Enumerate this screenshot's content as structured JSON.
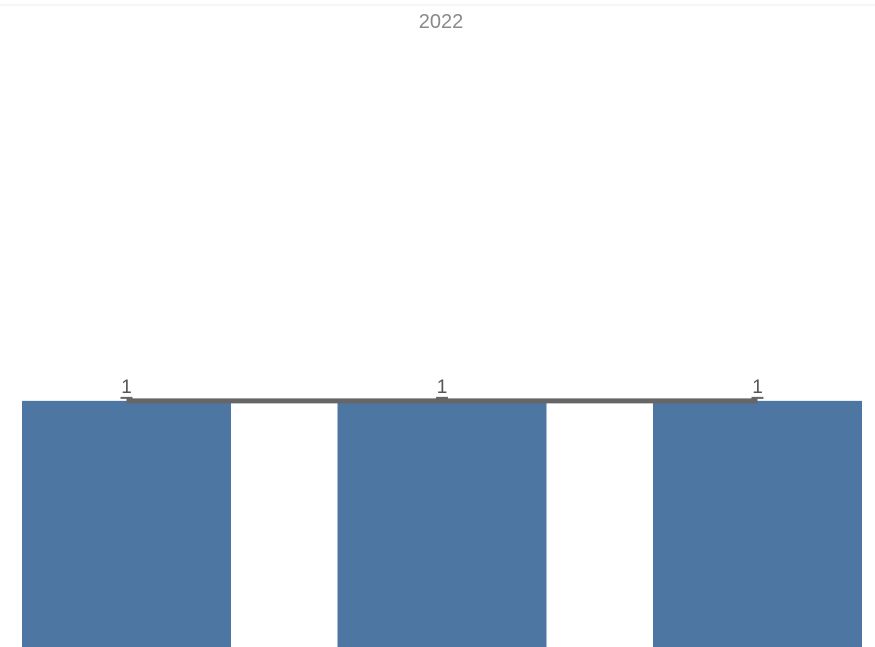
{
  "chart_data": {
    "type": "bar",
    "header": "2022",
    "categories": [
      "",
      "",
      ""
    ],
    "values": [
      1,
      1,
      1
    ],
    "data_labels": [
      "1",
      "1",
      "1"
    ],
    "ylim": [
      0,
      2.45
    ],
    "grid": false,
    "legend": "none",
    "colors": {
      "bar": "#4d76a3",
      "line": "#666666",
      "header_text": "#8a8a8a",
      "label_text": "#555555",
      "top_rule": "#eeeeee"
    }
  }
}
